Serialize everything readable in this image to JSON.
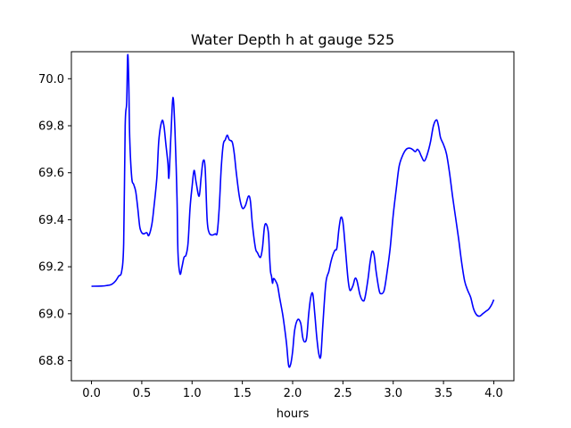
{
  "chart_data": {
    "type": "line",
    "title": "Water Depth h at gauge 525",
    "xlabel": "hours",
    "ylabel": "",
    "xlim": [
      -0.2,
      4.2
    ],
    "ylim": [
      68.715,
      70.115
    ],
    "x_ticks": [
      0.0,
      0.5,
      1.0,
      1.5,
      2.0,
      2.5,
      3.0,
      3.5,
      4.0
    ],
    "x_tick_labels": [
      "0.0",
      "0.5",
      "1.0",
      "1.5",
      "2.0",
      "2.5",
      "3.0",
      "3.5",
      "4.0"
    ],
    "y_ticks": [
      68.8,
      69.0,
      69.2,
      69.4,
      69.6,
      69.8,
      70.0
    ],
    "y_tick_labels": [
      "68.8",
      "69.0",
      "69.2",
      "69.4",
      "69.6",
      "69.8",
      "70.0"
    ],
    "grid": false,
    "series": [
      {
        "color": "#0000ff",
        "points": [
          [
            0.0,
            69.117
          ],
          [
            0.1,
            69.118
          ],
          [
            0.15,
            69.12
          ],
          [
            0.2,
            69.125
          ],
          [
            0.24,
            69.14
          ],
          [
            0.27,
            69.16
          ],
          [
            0.3,
            69.18
          ],
          [
            0.32,
            69.3
          ],
          [
            0.335,
            69.8
          ],
          [
            0.35,
            69.9
          ],
          [
            0.36,
            70.1
          ],
          [
            0.37,
            70.0
          ],
          [
            0.38,
            69.75
          ],
          [
            0.4,
            69.58
          ],
          [
            0.42,
            69.55
          ],
          [
            0.44,
            69.52
          ],
          [
            0.46,
            69.45
          ],
          [
            0.48,
            69.37
          ],
          [
            0.5,
            69.345
          ],
          [
            0.52,
            69.34
          ],
          [
            0.55,
            69.345
          ],
          [
            0.57,
            69.333
          ],
          [
            0.6,
            69.38
          ],
          [
            0.62,
            69.45
          ],
          [
            0.65,
            69.58
          ],
          [
            0.67,
            69.74
          ],
          [
            0.7,
            69.82
          ],
          [
            0.72,
            69.8
          ],
          [
            0.74,
            69.72
          ],
          [
            0.76,
            69.64
          ],
          [
            0.77,
            69.58
          ],
          [
            0.79,
            69.76
          ],
          [
            0.81,
            69.92
          ],
          [
            0.83,
            69.78
          ],
          [
            0.85,
            69.5
          ],
          [
            0.86,
            69.26
          ],
          [
            0.88,
            69.17
          ],
          [
            0.9,
            69.2
          ],
          [
            0.92,
            69.24
          ],
          [
            0.94,
            69.25
          ],
          [
            0.96,
            69.3
          ],
          [
            0.98,
            69.45
          ],
          [
            1.0,
            69.54
          ],
          [
            1.02,
            69.61
          ],
          [
            1.04,
            69.56
          ],
          [
            1.07,
            69.5
          ],
          [
            1.09,
            69.58
          ],
          [
            1.11,
            69.65
          ],
          [
            1.13,
            69.62
          ],
          [
            1.15,
            69.4
          ],
          [
            1.17,
            69.345
          ],
          [
            1.2,
            69.335
          ],
          [
            1.23,
            69.34
          ],
          [
            1.25,
            69.345
          ],
          [
            1.27,
            69.45
          ],
          [
            1.29,
            69.62
          ],
          [
            1.31,
            69.72
          ],
          [
            1.33,
            69.74
          ],
          [
            1.35,
            69.76
          ],
          [
            1.37,
            69.74
          ],
          [
            1.4,
            69.73
          ],
          [
            1.42,
            69.68
          ],
          [
            1.44,
            69.6
          ],
          [
            1.47,
            69.5
          ],
          [
            1.5,
            69.45
          ],
          [
            1.53,
            69.46
          ],
          [
            1.56,
            69.5
          ],
          [
            1.58,
            69.48
          ],
          [
            1.6,
            69.38
          ],
          [
            1.63,
            69.28
          ],
          [
            1.65,
            69.26
          ],
          [
            1.68,
            69.24
          ],
          [
            1.7,
            69.28
          ],
          [
            1.72,
            69.37
          ],
          [
            1.74,
            69.38
          ],
          [
            1.76,
            69.34
          ],
          [
            1.77,
            69.25
          ],
          [
            1.78,
            69.18
          ],
          [
            1.79,
            69.16
          ],
          [
            1.8,
            69.13
          ],
          [
            1.81,
            69.15
          ],
          [
            1.83,
            69.14
          ],
          [
            1.85,
            69.12
          ],
          [
            1.87,
            69.07
          ],
          [
            1.9,
            69.0
          ],
          [
            1.92,
            68.94
          ],
          [
            1.94,
            68.87
          ],
          [
            1.96,
            68.78
          ],
          [
            1.98,
            68.785
          ],
          [
            2.0,
            68.84
          ],
          [
            2.02,
            68.93
          ],
          [
            2.05,
            68.975
          ],
          [
            2.08,
            68.96
          ],
          [
            2.1,
            68.9
          ],
          [
            2.12,
            68.88
          ],
          [
            2.14,
            68.9
          ],
          [
            2.16,
            69.0
          ],
          [
            2.18,
            69.07
          ],
          [
            2.2,
            69.085
          ],
          [
            2.22,
            69.0
          ],
          [
            2.24,
            68.9
          ],
          [
            2.26,
            68.83
          ],
          [
            2.28,
            68.82
          ],
          [
            2.3,
            68.95
          ],
          [
            2.33,
            69.13
          ],
          [
            2.36,
            69.18
          ],
          [
            2.38,
            69.22
          ],
          [
            2.4,
            69.25
          ],
          [
            2.42,
            69.27
          ],
          [
            2.44,
            69.28
          ],
          [
            2.46,
            69.36
          ],
          [
            2.48,
            69.41
          ],
          [
            2.5,
            69.39
          ],
          [
            2.52,
            69.3
          ],
          [
            2.55,
            69.15
          ],
          [
            2.57,
            69.1
          ],
          [
            2.6,
            69.12
          ],
          [
            2.62,
            69.15
          ],
          [
            2.64,
            69.14
          ],
          [
            2.67,
            69.08
          ],
          [
            2.7,
            69.055
          ],
          [
            2.72,
            69.07
          ],
          [
            2.75,
            69.15
          ],
          [
            2.77,
            69.22
          ],
          [
            2.79,
            69.265
          ],
          [
            2.81,
            69.25
          ],
          [
            2.83,
            69.18
          ],
          [
            2.86,
            69.1
          ],
          [
            2.88,
            69.085
          ],
          [
            2.91,
            69.1
          ],
          [
            2.94,
            69.18
          ],
          [
            2.97,
            69.28
          ],
          [
            3.0,
            69.42
          ],
          [
            3.03,
            69.53
          ],
          [
            3.06,
            69.63
          ],
          [
            3.1,
            69.68
          ],
          [
            3.13,
            69.7
          ],
          [
            3.16,
            69.705
          ],
          [
            3.19,
            69.7
          ],
          [
            3.22,
            69.69
          ],
          [
            3.24,
            69.7
          ],
          [
            3.26,
            69.69
          ],
          [
            3.28,
            69.67
          ],
          [
            3.31,
            69.65
          ],
          [
            3.34,
            69.68
          ],
          [
            3.37,
            69.73
          ],
          [
            3.4,
            69.8
          ],
          [
            3.43,
            69.825
          ],
          [
            3.45,
            69.8
          ],
          [
            3.47,
            69.75
          ],
          [
            3.5,
            69.72
          ],
          [
            3.53,
            69.68
          ],
          [
            3.56,
            69.6
          ],
          [
            3.59,
            69.5
          ],
          [
            3.62,
            69.41
          ],
          [
            3.65,
            69.32
          ],
          [
            3.68,
            69.22
          ],
          [
            3.71,
            69.14
          ],
          [
            3.74,
            69.1
          ],
          [
            3.77,
            69.07
          ],
          [
            3.8,
            69.02
          ],
          [
            3.83,
            68.995
          ],
          [
            3.86,
            68.99
          ],
          [
            3.89,
            69.0
          ],
          [
            3.92,
            69.01
          ],
          [
            3.95,
            69.02
          ],
          [
            3.98,
            69.04
          ],
          [
            4.0,
            69.06
          ]
        ]
      }
    ]
  }
}
